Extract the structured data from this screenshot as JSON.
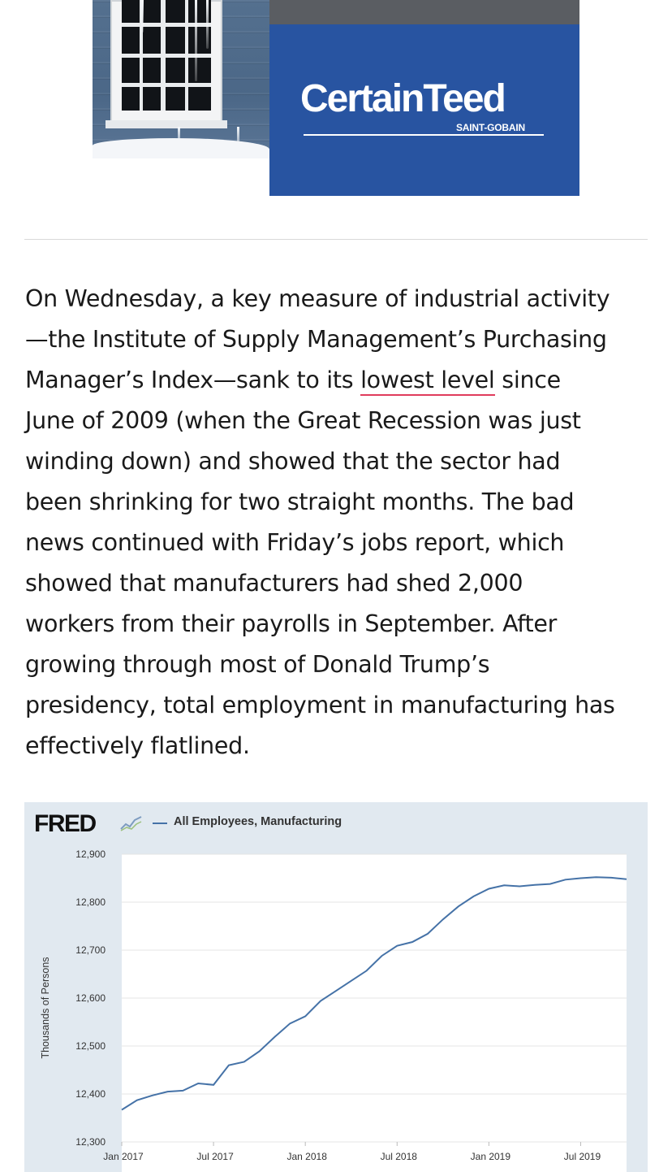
{
  "ad": {
    "brand": "CertainTeed",
    "sub_brand": "SAINT-GOBAIN",
    "colors": {
      "panel": "#2854a1",
      "text": "#ffffff"
    }
  },
  "article": {
    "lines_before_link": [
      "On Wednesday, a key measure of industrial activity",
      "—the Institute of Supply Management’s Purchasing"
    ],
    "link_line_prefix": "Manager’s Index—sank to its ",
    "link_text": "lowest level",
    "link_line_suffix": " since",
    "lines_after_link": [
      "June of 2009 (when the Great Recession was just",
      "winding down) and showed that the sector had",
      "been shrinking for two straight months. The bad",
      "news continued with Friday’s jobs report, which",
      "showed that manufacturers had shed 2,000",
      "workers from their payrolls in September. After",
      "growing through most of Donald Trump’s",
      "presidency, total employment in manufacturing has",
      "effectively flatlined."
    ],
    "link_underline_color": "#e03c5c"
  },
  "fred": {
    "logo": "FRED",
    "logo_icon": "fred-trend-icon",
    "legend": "All Employees, Manufacturing",
    "background": "#e1e9f0"
  },
  "chart_data": {
    "type": "line",
    "title": "",
    "xlabel": "",
    "ylabel": "Thousands of Persons",
    "ylim": [
      12300,
      12900
    ],
    "yticks": [
      12300,
      12400,
      12500,
      12600,
      12700,
      12800,
      12900
    ],
    "ytick_labels": [
      "12,300",
      "12,400",
      "12,500",
      "12,600",
      "12,700",
      "12,800",
      "12,900"
    ],
    "xtick_labels": [
      "Jan 2017",
      "Jul 2017",
      "Jan 2018",
      "Jul 2018",
      "Jan 2019",
      "Jul 2019"
    ],
    "xtick_month_index": [
      0,
      6,
      12,
      18,
      24,
      30
    ],
    "x_month_span": 33,
    "grid": true,
    "line_color": "#4572a7",
    "series": [
      {
        "name": "All Employees, Manufacturing",
        "x": [
          "2017-01",
          "2017-02",
          "2017-03",
          "2017-04",
          "2017-05",
          "2017-06",
          "2017-07",
          "2017-08",
          "2017-09",
          "2017-10",
          "2017-11",
          "2017-12",
          "2018-01",
          "2018-02",
          "2018-03",
          "2018-04",
          "2018-05",
          "2018-06",
          "2018-07",
          "2018-08",
          "2018-09",
          "2018-10",
          "2018-11",
          "2018-12",
          "2019-01",
          "2019-02",
          "2019-03",
          "2019-04",
          "2019-05",
          "2019-06",
          "2019-07",
          "2019-08",
          "2019-09",
          "2019-10"
        ],
        "values": [
          12367,
          12387,
          12397,
          12405,
          12407,
          12422,
          12419,
          12460,
          12467,
          12489,
          12519,
          12547,
          12562,
          12594,
          12615,
          12636,
          12657,
          12688,
          12709,
          12717,
          12734,
          12764,
          12791,
          12812,
          12828,
          12835,
          12833,
          12836,
          12838,
          12847,
          12850,
          12852,
          12851,
          12848
        ]
      }
    ]
  }
}
